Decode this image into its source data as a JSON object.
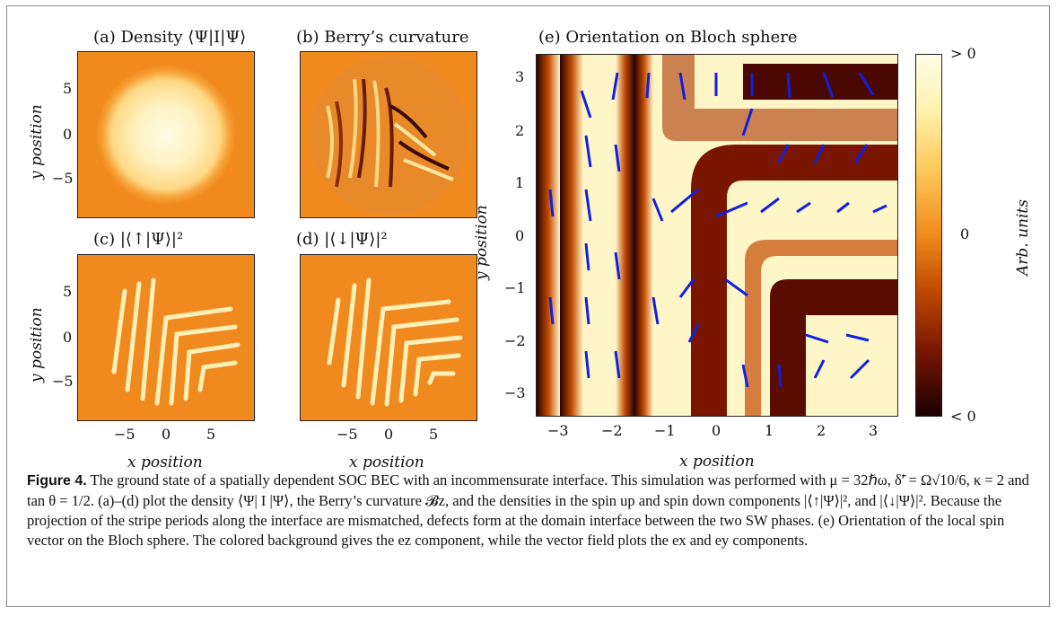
{
  "panels": {
    "a": {
      "title": "(a) Density ⟨Ψ|I|Ψ⟩"
    },
    "b": {
      "title": "(b) Berry’s curvature"
    },
    "c": {
      "title": "(c) |⟨↑|Ψ⟩|²"
    },
    "d": {
      "title": "(d) |⟨↓|Ψ⟩|²"
    },
    "e": {
      "title": "(e) Orientation on Bloch sphere"
    }
  },
  "small_axes": {
    "xticks": [
      "−5",
      "0",
      "5"
    ],
    "yticks": [
      "5",
      "0",
      "−5"
    ],
    "xlabel": "x position",
    "ylabel": "y position"
  },
  "big_axes": {
    "xticks": [
      "−3",
      "−2",
      "−1",
      "0",
      "1",
      "2",
      "3"
    ],
    "yticks": [
      "3",
      "2",
      "1",
      "0",
      "−1",
      "−2",
      "−3"
    ],
    "xlabel": "x position",
    "ylabel": "y position"
  },
  "colorbar": {
    "top": "> 0",
    "middle": "0",
    "bottom": "< 0",
    "label": "Arb. units"
  },
  "caption": {
    "label": "Figure 4.",
    "text": " The ground state of a spatially dependent SOC BEC with an incommensurate interface. This simulation was performed with μ = 32ℏω, δ̃′ = Ω√10/6, κ = 2 and tan θ = 1/2. (a)–(d) plot the density ⟨Ψ| I |Ψ⟩, the Berry’s curvature 𝓑z, and the densities in the spin up and spin down components |⟨↑|Ψ⟩|², and |⟨↓|Ψ⟩|². Because the projection of the stripe periods along the interface are mismatched, defects form at the domain interface between the two SW phases. (e) Orientation of the local spin vector on the Bloch sphere. The colored background gives the ez component, while the vector field plots the ex and ey components."
  }
}
